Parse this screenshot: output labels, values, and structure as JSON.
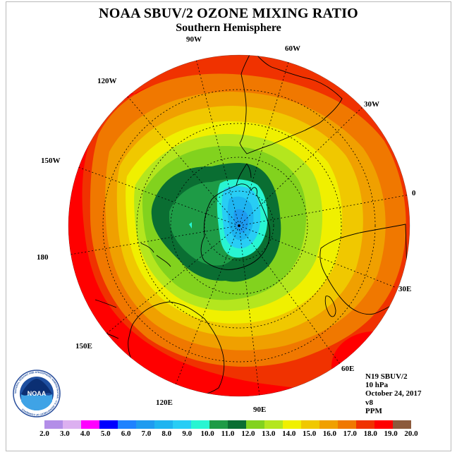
{
  "title": "NOAA SBUV/2 OZONE MIXING RATIO",
  "subtitle": "Southern Hemisphere",
  "longitude_labels": [
    {
      "id": "90w",
      "text": "90W"
    },
    {
      "id": "60w",
      "text": "60W"
    },
    {
      "id": "30w",
      "text": "30W"
    },
    {
      "id": "120w",
      "text": "120W"
    },
    {
      "id": "150w",
      "text": "150W"
    },
    {
      "id": "0",
      "text": "0"
    },
    {
      "id": "180",
      "text": "180"
    },
    {
      "id": "30e",
      "text": "30E"
    },
    {
      "id": "150e",
      "text": "150E"
    },
    {
      "id": "60e",
      "text": "60E"
    },
    {
      "id": "120e",
      "text": "120E"
    },
    {
      "id": "90e",
      "text": "90E"
    }
  ],
  "info": {
    "satellite": "N19 SBUV/2",
    "pressure_level": "10 hPa",
    "date": "October 24, 2017",
    "version": "v8",
    "units": "PPM"
  },
  "legend": {
    "ticks": [
      "2.0",
      "3.0",
      "4.0",
      "5.0",
      "6.0",
      "7.0",
      "8.0",
      "9.0",
      "10.0",
      "11.0",
      "12.0",
      "13.0",
      "14.0",
      "15.0",
      "16.0",
      "17.0",
      "18.0",
      "19.0",
      "20.0"
    ],
    "colors": [
      "#b38ee8",
      "#dcb0f0",
      "#ff00ff",
      "#0000ff",
      "#1e82ff",
      "#1e9bf0",
      "#1eb4f0",
      "#28cdf5",
      "#28f5d2",
      "#1e9b46",
      "#0a6e32",
      "#82d21e",
      "#b4e61e",
      "#f0f000",
      "#f0c800",
      "#f0a000",
      "#f07800",
      "#f03200",
      "#ff0000",
      "#8c5a3c"
    ]
  },
  "logo": {
    "text": "NOAA",
    "ring_text": "NATIONAL OCEANIC AND ATMOSPHERIC ADMINISTRATION · U.S. DEPARTMENT OF COMMERCE"
  }
}
